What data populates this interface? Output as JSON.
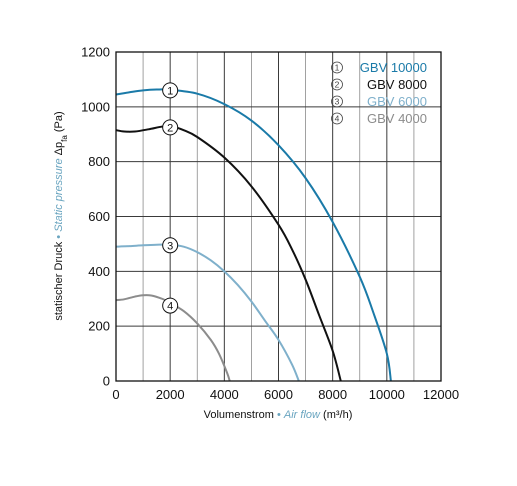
{
  "chart_data": {
    "type": "line",
    "xlabel": {
      "main": "Volumenstrom",
      "sep": " • ",
      "alt": "Air flow",
      "unit": " (m³/h)"
    },
    "ylabel": {
      "main": "statischer Druck",
      "sep": " • ",
      "alt": "Static pressure",
      "symbol": " Δp",
      "subscript": "fa",
      "unit": " (Pa)"
    },
    "xlim": [
      0,
      12000
    ],
    "ylim": [
      0,
      1200
    ],
    "x_ticks": [
      0,
      2000,
      4000,
      6000,
      8000,
      10000,
      12000
    ],
    "y_ticks": [
      0,
      200,
      400,
      600,
      800,
      1000,
      1200
    ],
    "x_minor_step": 1000,
    "grid": true,
    "legend_position": "top-right",
    "alt_label_color": "#6aa5c0",
    "series": [
      {
        "marker": "1",
        "name": "GBV 10000",
        "color": "#1a7aa8",
        "marker_at": [
          2000,
          1060
        ],
        "points": [
          [
            0,
            1045
          ],
          [
            500,
            1053
          ],
          [
            1000,
            1060
          ],
          [
            1500,
            1063
          ],
          [
            2000,
            1062
          ],
          [
            3000,
            1048
          ],
          [
            4000,
            1010
          ],
          [
            5000,
            950
          ],
          [
            6000,
            860
          ],
          [
            7000,
            740
          ],
          [
            8000,
            580
          ],
          [
            9000,
            380
          ],
          [
            9500,
            250
          ],
          [
            10000,
            100
          ],
          [
            10150,
            0
          ]
        ]
      },
      {
        "marker": "2",
        "name": "GBV 8000",
        "color": "#111111",
        "marker_at": [
          2000,
          925
        ],
        "points": [
          [
            0,
            915
          ],
          [
            300,
            910
          ],
          [
            700,
            910
          ],
          [
            1200,
            918
          ],
          [
            1700,
            928
          ],
          [
            2000,
            930
          ],
          [
            2500,
            915
          ],
          [
            3000,
            890
          ],
          [
            4000,
            815
          ],
          [
            5000,
            710
          ],
          [
            6000,
            570
          ],
          [
            6500,
            480
          ],
          [
            7000,
            370
          ],
          [
            7500,
            240
          ],
          [
            8000,
            110
          ],
          [
            8300,
            0
          ]
        ]
      },
      {
        "marker": "3",
        "name": "GBV 6000",
        "color": "#7fb0cb",
        "marker_at": [
          2000,
          495
        ],
        "points": [
          [
            0,
            490
          ],
          [
            500,
            492
          ],
          [
            1000,
            495
          ],
          [
            1500,
            497
          ],
          [
            2000,
            497
          ],
          [
            2500,
            490
          ],
          [
            3000,
            470
          ],
          [
            3500,
            440
          ],
          [
            4000,
            400
          ],
          [
            4500,
            350
          ],
          [
            5000,
            290
          ],
          [
            5500,
            220
          ],
          [
            6000,
            150
          ],
          [
            6500,
            60
          ],
          [
            6750,
            0
          ]
        ]
      },
      {
        "marker": "4",
        "name": "GBV 4000",
        "color": "#8c8c8c",
        "marker_at": [
          2000,
          275
        ],
        "points": [
          [
            0,
            295
          ],
          [
            300,
            298
          ],
          [
            700,
            308
          ],
          [
            1000,
            313
          ],
          [
            1300,
            312
          ],
          [
            1700,
            300
          ],
          [
            2000,
            285
          ],
          [
            2500,
            255
          ],
          [
            3000,
            210
          ],
          [
            3500,
            150
          ],
          [
            3800,
            100
          ],
          [
            4100,
            30
          ],
          [
            4200,
            0
          ]
        ]
      }
    ]
  }
}
